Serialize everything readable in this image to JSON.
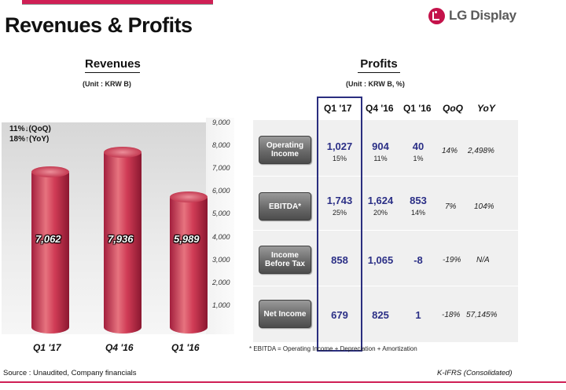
{
  "slide": {
    "title": "Revenues & Profits",
    "logo_text": "LG Display",
    "accent": "#cf1f55"
  },
  "revenues": {
    "heading": "Revenues",
    "unit": "(Unit : KRW B)",
    "annotation_qoq": "11%↓(QoQ)",
    "annotation_yoy": "18%↑(YoY)"
  },
  "chart_data": {
    "type": "bar",
    "title": "Revenues",
    "categories": [
      "Q1 '17",
      "Q4 '16",
      "Q1 '16"
    ],
    "values": [
      7062,
      7936,
      5989
    ],
    "value_labels": [
      "7,062",
      "7,936",
      "5,989"
    ],
    "ylim": [
      0,
      9000
    ],
    "yticks": [
      "1,000",
      "2,000",
      "3,000",
      "4,000",
      "5,000",
      "6,000",
      "7,000",
      "8,000",
      "9,000"
    ],
    "ytick_values": [
      1000,
      2000,
      3000,
      4000,
      5000,
      6000,
      7000,
      8000,
      9000
    ],
    "bar_color": "#cc3a55",
    "grid": false,
    "xlabel": "",
    "ylabel": ""
  },
  "profits": {
    "heading": "Profits",
    "unit": "(Unit : KRW B, %)",
    "columns": [
      "Q1 '17",
      "Q4 '16",
      "Q1 '16",
      "QoQ",
      "YoY"
    ],
    "rows": [
      {
        "label": "Operating Income",
        "q1_17": "1,027",
        "q1_17_pct": "15%",
        "q4_16": "904",
        "q4_16_pct": "11%",
        "q1_16": "40",
        "q1_16_pct": "1%",
        "qoq": "14%",
        "yoy": "2,498%"
      },
      {
        "label": "EBITDA*",
        "q1_17": "1,743",
        "q1_17_pct": "25%",
        "q4_16": "1,624",
        "q4_16_pct": "20%",
        "q1_16": "853",
        "q1_16_pct": "14%",
        "qoq": "7%",
        "yoy": "104%"
      },
      {
        "label": "Income Before Tax",
        "q1_17": "858",
        "q4_16": "1,065",
        "q1_16": "-8",
        "qoq": "-19%",
        "yoy": "N/A"
      },
      {
        "label": "Net Income",
        "q1_17": "679",
        "q4_16": "825",
        "q1_16": "1",
        "qoq": "-18%",
        "yoy": "57,145%"
      }
    ],
    "footnote": "* EBITDA = Operating Income + Depreciation + Amortization"
  },
  "footer": {
    "source": "Source : Unaudited, Company financials",
    "standard": "K-IFRS (Consolidated)"
  }
}
